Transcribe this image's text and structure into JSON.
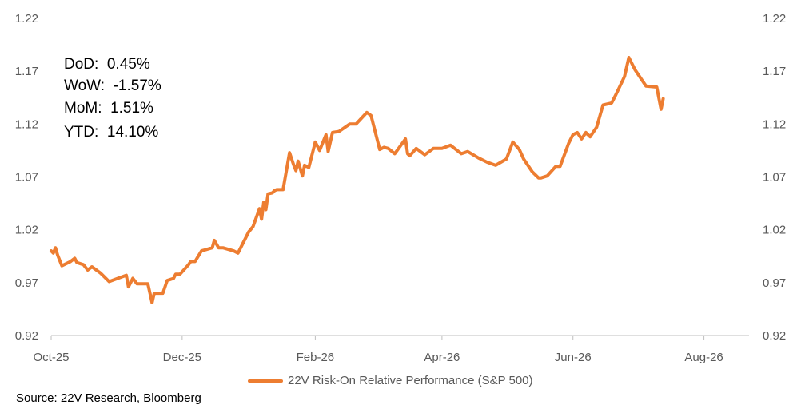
{
  "stats": [
    {
      "label": "DoD:",
      "value": "0.45%"
    },
    {
      "label": "WoW:",
      "value": "-1.57%"
    },
    {
      "label": "MoM:",
      "value": "1.51%"
    },
    {
      "label": "YTD:",
      "value": "14.10%"
    }
  ],
  "source": "Source: 22V Research, Bloomberg",
  "colors": {
    "line": "#ED7D31",
    "axis": "#BFBFBF"
  },
  "chart_data": {
    "type": "line",
    "title": "",
    "xlabel": "",
    "ylabel": "",
    "ylim": [
      0.92,
      1.22
    ],
    "yticks": [
      "0.92",
      "0.97",
      "1.02",
      "1.07",
      "1.12",
      "1.17",
      "1.22"
    ],
    "xticks": [
      "Oct-25",
      "Dec-25",
      "Feb-26",
      "Apr-26",
      "Jun-26",
      "Aug-26"
    ],
    "xtick_dates": [
      "2025-10-01",
      "2025-12-01",
      "2026-02-01",
      "2026-04-01",
      "2026-06-01",
      "2026-08-01"
    ],
    "grid": false,
    "legend": "bottom",
    "series": [
      {
        "name": "22V Risk-On Relative Performance (S&P 500)",
        "x": [
          "2025-10-01",
          "2025-10-02",
          "2025-10-03",
          "2025-10-04",
          "2025-10-06",
          "2025-10-10",
          "2025-10-12",
          "2025-10-13",
          "2025-10-16",
          "2025-10-18",
          "2025-10-20",
          "2025-10-24",
          "2025-10-28",
          "2025-11-01",
          "2025-11-05",
          "2025-11-06",
          "2025-11-08",
          "2025-11-10",
          "2025-11-15",
          "2025-11-16",
          "2025-11-17",
          "2025-11-18",
          "2025-11-20",
          "2025-11-22",
          "2025-11-24",
          "2025-11-27",
          "2025-11-28",
          "2025-11-30",
          "2025-12-04",
          "2025-12-05",
          "2025-12-07",
          "2025-12-10",
          "2025-12-15",
          "2025-12-16",
          "2025-12-18",
          "2025-12-20",
          "2025-12-25",
          "2025-12-27",
          "2026-01-01",
          "2026-01-03",
          "2026-01-06",
          "2026-01-07",
          "2026-01-08",
          "2026-01-09",
          "2026-01-10",
          "2026-01-12",
          "2026-01-13",
          "2026-01-14",
          "2026-01-17",
          "2026-01-20",
          "2026-01-21",
          "2026-01-22",
          "2026-01-23",
          "2026-01-24",
          "2026-01-26",
          "2026-01-27",
          "2026-01-29",
          "2026-02-01",
          "2026-02-03",
          "2026-02-05",
          "2026-02-06",
          "2026-02-07",
          "2026-02-09",
          "2026-02-12",
          "2026-02-17",
          "2026-02-20",
          "2026-02-25",
          "2026-02-27",
          "2026-03-03",
          "2026-03-05",
          "2026-03-07",
          "2026-03-10",
          "2026-03-15",
          "2026-03-16",
          "2026-03-17",
          "2026-03-20",
          "2026-03-24",
          "2026-03-28",
          "2026-04-01",
          "2026-04-05",
          "2026-04-10",
          "2026-04-13",
          "2026-04-18",
          "2026-04-22",
          "2026-04-26",
          "2026-05-01",
          "2026-05-04",
          "2026-05-07",
          "2026-05-09",
          "2026-05-13",
          "2026-05-16",
          "2026-05-17",
          "2026-05-20",
          "2026-05-24",
          "2026-05-26",
          "2026-05-30",
          "2026-06-01",
          "2026-06-03",
          "2026-06-05",
          "2026-06-07",
          "2026-06-09",
          "2026-06-12",
          "2026-06-15",
          "2026-06-19",
          "2026-06-21",
          "2026-06-25",
          "2026-06-27",
          "2026-06-30",
          "2026-07-05",
          "2026-07-10",
          "2026-07-12",
          "2026-07-13"
        ],
        "values": [
          1.0,
          0.998,
          1.003,
          0.996,
          0.986,
          0.99,
          0.993,
          0.989,
          0.987,
          0.982,
          0.985,
          0.979,
          0.971,
          0.974,
          0.977,
          0.966,
          0.974,
          0.969,
          0.969,
          0.96,
          0.951,
          0.96,
          0.96,
          0.96,
          0.972,
          0.974,
          0.978,
          0.978,
          0.987,
          0.99,
          0.99,
          1.0,
          1.003,
          1.01,
          1.003,
          1.003,
          1.0,
          0.998,
          1.018,
          1.023,
          1.04,
          1.03,
          1.046,
          1.039,
          1.054,
          1.055,
          1.057,
          1.058,
          1.058,
          1.093,
          1.087,
          1.081,
          1.076,
          1.085,
          1.071,
          1.081,
          1.079,
          1.103,
          1.095,
          1.105,
          1.11,
          1.094,
          1.112,
          1.113,
          1.12,
          1.12,
          1.131,
          1.128,
          1.096,
          1.098,
          1.097,
          1.092,
          1.106,
          1.092,
          1.09,
          1.097,
          1.091,
          1.097,
          1.097,
          1.1,
          1.092,
          1.094,
          1.088,
          1.084,
          1.081,
          1.087,
          1.103,
          1.096,
          1.087,
          1.075,
          1.069,
          1.069,
          1.071,
          1.08,
          1.08,
          1.102,
          1.11,
          1.112,
          1.106,
          1.112,
          1.108,
          1.117,
          1.138,
          1.14,
          1.148,
          1.165,
          1.183,
          1.171,
          1.156,
          1.155,
          1.134,
          1.144
        ]
      }
    ]
  }
}
